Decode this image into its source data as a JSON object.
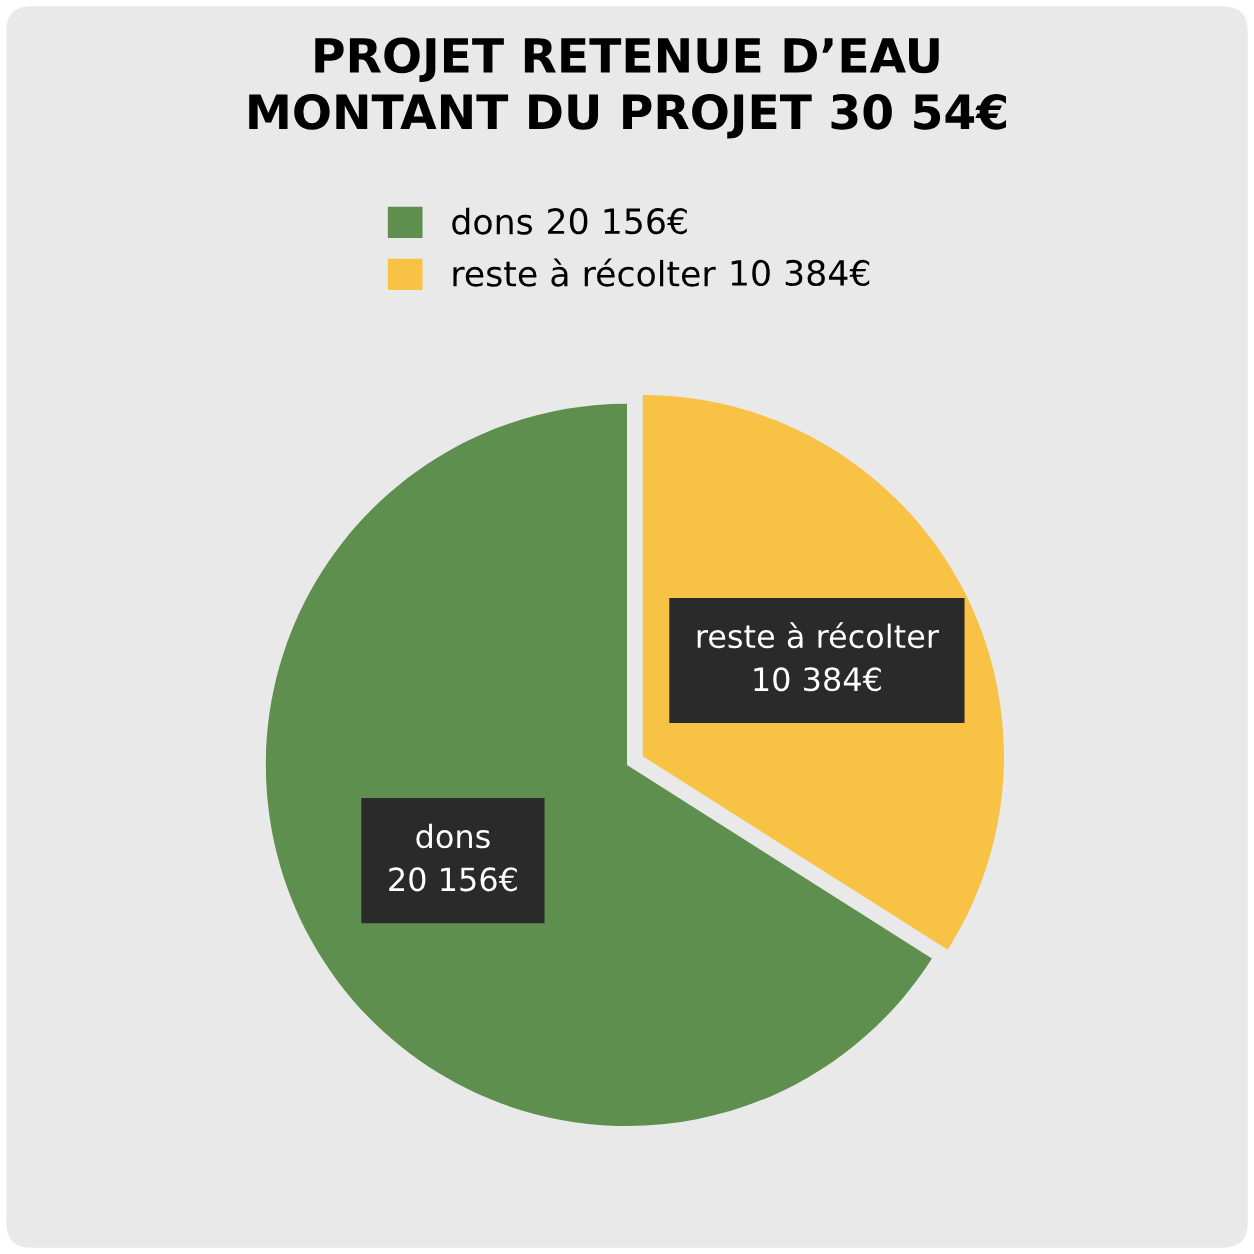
{
  "chart_data": {
    "type": "pie",
    "title": "PROJET RETENUE D’EAU\nMONTANT DU PROJET 30 54€",
    "categories": [
      "dons",
      "reste à récolter"
    ],
    "values": [
      20156,
      10384
    ],
    "value_labels": [
      "20 156€",
      "10 384€"
    ],
    "colors": [
      "#5e8f4e",
      "#f8c244"
    ],
    "legend": "top"
  }
}
